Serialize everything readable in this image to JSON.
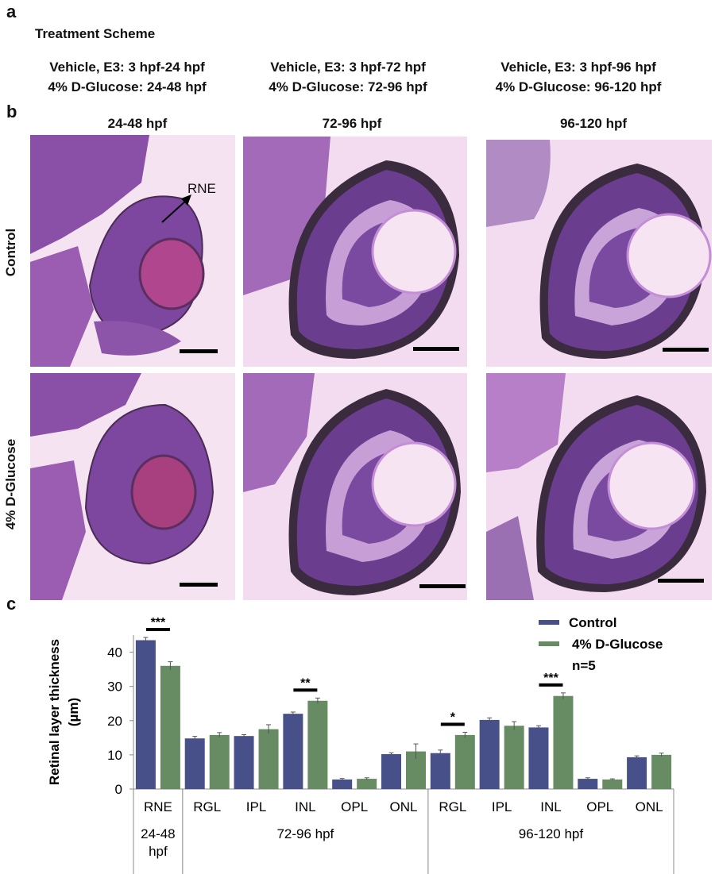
{
  "panel_a": {
    "letter": "a",
    "heading": "Treatment Scheme",
    "columns": [
      {
        "line1": "Vehicle, E3: 3 hpf-24 hpf",
        "line2": "4% D-Glucose: 24-48 hpf"
      },
      {
        "line1": "Vehicle, E3: 3 hpf-72 hpf",
        "line2": "4% D-Glucose: 72-96 hpf"
      },
      {
        "line1": "Vehicle, E3: 3 hpf-96 hpf",
        "line2": "4% D-Glucose: 96-120 hpf"
      }
    ]
  },
  "panel_b": {
    "letter": "b",
    "column_headers": [
      "24-48 hpf",
      "72-96 hpf",
      "96-120 hpf"
    ],
    "row_labels": [
      "Control",
      "4% D-Glucose"
    ],
    "annotation": "RNE"
  },
  "panel_c": {
    "letter": "c"
  },
  "chart_data": {
    "type": "bar",
    "ylabel": "Retinal layer thickness (µm)",
    "ylim": [
      0,
      45
    ],
    "yticks": [
      0,
      10,
      20,
      30,
      40
    ],
    "categories": [
      "RNE",
      "RGL",
      "IPL",
      "INL",
      "OPL",
      "ONL",
      "RGL",
      "IPL",
      "INL",
      "OPL",
      "ONL"
    ],
    "groups": [
      {
        "label": "24-48 hpf",
        "span": [
          0,
          0
        ]
      },
      {
        "label": "72-96 hpf",
        "span": [
          1,
          5
        ]
      },
      {
        "label": "96-120 hpf",
        "span": [
          6,
          10
        ]
      }
    ],
    "series": [
      {
        "name": "Control",
        "color": "#48508a",
        "values": [
          43.5,
          14.8,
          15.5,
          22.0,
          2.8,
          10.2,
          10.5,
          20.2,
          18.0,
          3.0,
          9.3
        ],
        "errors": [
          0.8,
          0.6,
          0.4,
          0.5,
          0.3,
          0.4,
          0.9,
          0.6,
          0.5,
          0.3,
          0.4
        ]
      },
      {
        "name": "4% D-Glucose",
        "color": "#678b63",
        "values": [
          36.0,
          15.8,
          17.5,
          25.8,
          3.0,
          11.0,
          15.8,
          18.5,
          27.2,
          2.8,
          10.0
        ],
        "errors": [
          1.2,
          0.7,
          1.3,
          0.8,
          0.3,
          2.2,
          0.8,
          1.2,
          0.9,
          0.2,
          0.5
        ]
      }
    ],
    "significance": [
      {
        "category_index": 0,
        "label": "***"
      },
      {
        "category_index": 3,
        "label": "**"
      },
      {
        "category_index": 6,
        "label": "*"
      },
      {
        "category_index": 8,
        "label": "***"
      }
    ],
    "legend_note": "n=5",
    "legend_position": "top-right"
  }
}
